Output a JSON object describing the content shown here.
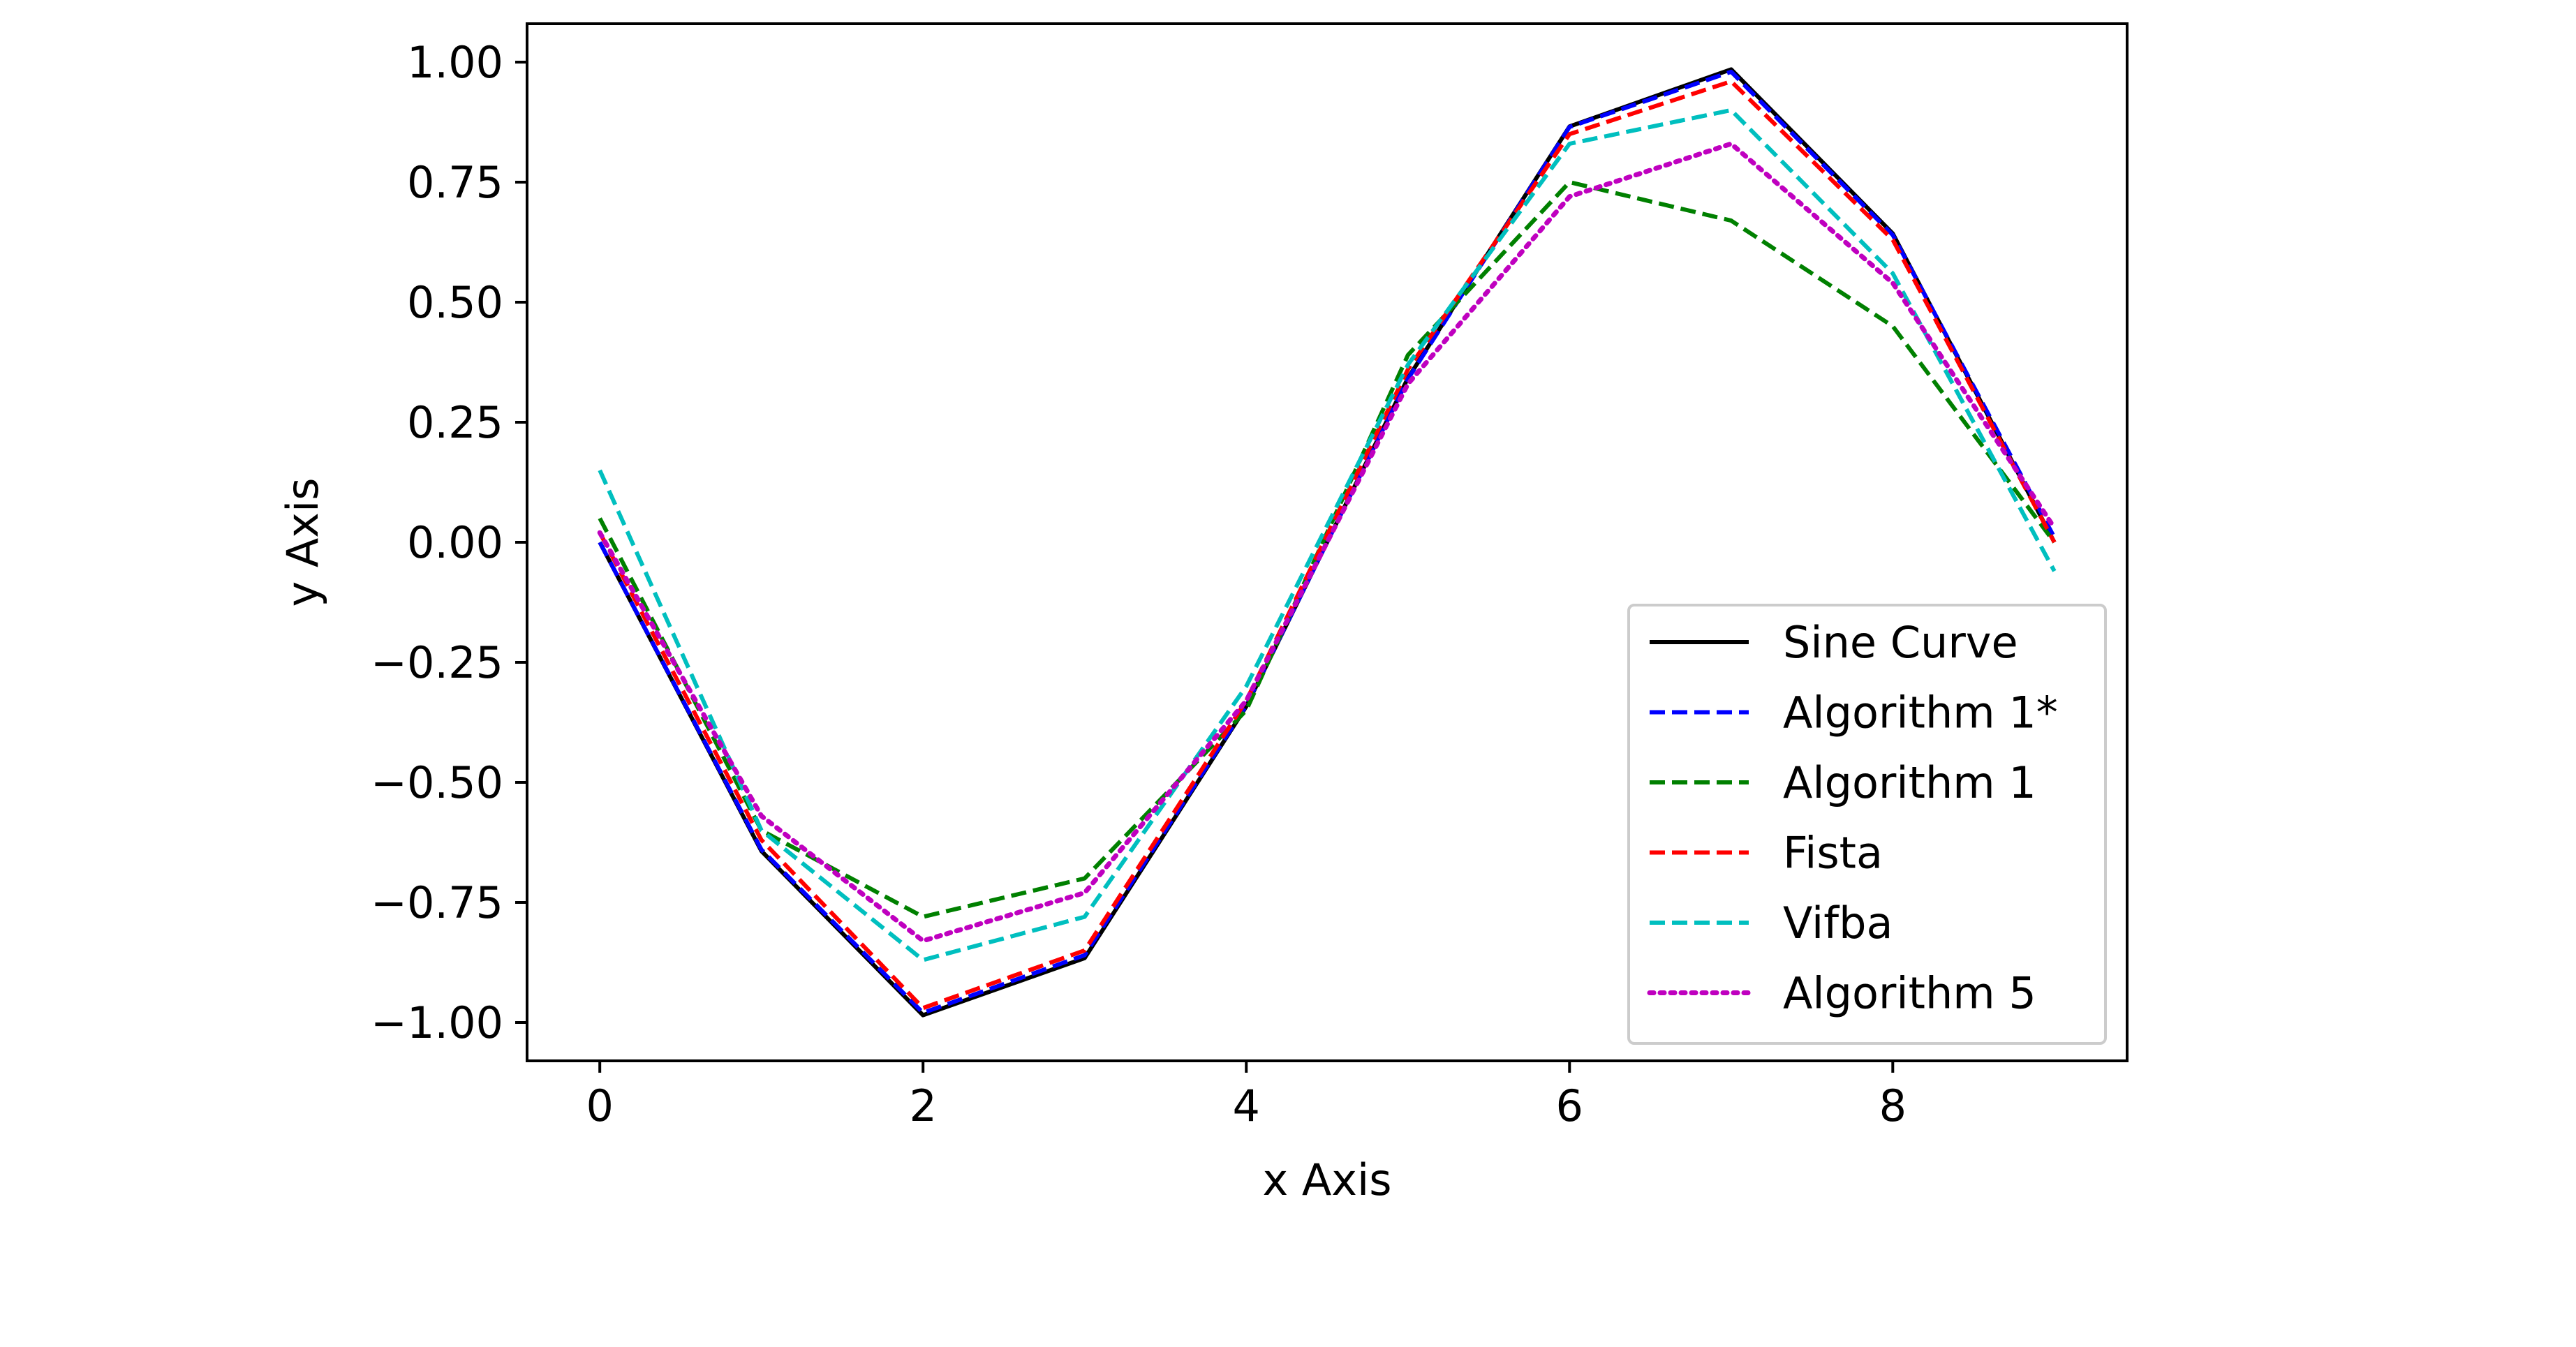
{
  "chart_data": {
    "type": "line",
    "title": "",
    "xlabel": "x Axis",
    "ylabel": "y Axis",
    "xlim": [
      -0.45,
      9.45
    ],
    "ylim": [
      -1.08,
      1.08
    ],
    "xticks": [
      0,
      2,
      4,
      6,
      8
    ],
    "xtick_labels": [
      "0",
      "2",
      "4",
      "6",
      "8"
    ],
    "yticks": [
      1.0,
      0.75,
      0.5,
      0.25,
      0.0,
      -0.25,
      -0.5,
      -0.75,
      -1.0
    ],
    "ytick_labels": [
      "1.00",
      "0.75",
      "0.50",
      "0.25",
      "0.00",
      "−0.25",
      "−0.50",
      "−0.75",
      "−1.00"
    ],
    "grid": false,
    "legend_position": "lower-right",
    "x": [
      0,
      1,
      2,
      3,
      4,
      5,
      6,
      7,
      8,
      9
    ],
    "series": [
      {
        "name": "Sine Curve",
        "color": "#000000",
        "linestyle": "solid",
        "values": [
          0.0,
          -0.643,
          -0.985,
          -0.866,
          -0.342,
          0.342,
          0.866,
          0.985,
          0.643,
          0.0
        ]
      },
      {
        "name": "Algorithm 1*",
        "color": "#0000ff",
        "linestyle": "dashed",
        "values": [
          0.0,
          -0.64,
          -0.98,
          -0.86,
          -0.34,
          0.34,
          0.865,
          0.98,
          0.64,
          0.01
        ]
      },
      {
        "name": "Algorithm 1",
        "color": "#008000",
        "linestyle": "dashed",
        "values": [
          0.05,
          -0.6,
          -0.78,
          -0.7,
          -0.35,
          0.39,
          0.75,
          0.67,
          0.45,
          0.0
        ]
      },
      {
        "name": "Fista",
        "color": "#ff0000",
        "linestyle": "dashed",
        "values": [
          0.02,
          -0.62,
          -0.97,
          -0.85,
          -0.33,
          0.36,
          0.85,
          0.96,
          0.63,
          0.0
        ]
      },
      {
        "name": "Vifba",
        "color": "#00bfbf",
        "linestyle": "dashed",
        "values": [
          0.15,
          -0.6,
          -0.87,
          -0.78,
          -0.3,
          0.37,
          0.83,
          0.9,
          0.56,
          -0.06
        ]
      },
      {
        "name": "Algorithm 5",
        "color": "#bf00bf",
        "linestyle": "dotted",
        "values": [
          0.02,
          -0.57,
          -0.83,
          -0.73,
          -0.33,
          0.33,
          0.72,
          0.83,
          0.54,
          0.03
        ]
      }
    ]
  }
}
